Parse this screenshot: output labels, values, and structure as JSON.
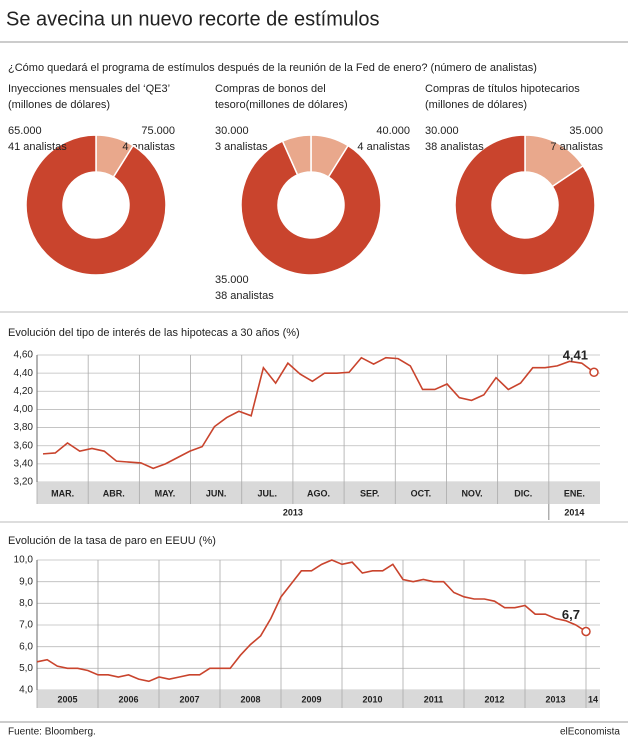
{
  "title": "Se avecina un nuevo recorte de estímulos",
  "subtitle": "¿Cómo quedará el programa de estímulos después de la reunión de la Fed de enero? (número de analistas)",
  "source": "Fuente: Bloomberg.",
  "brand": "elEconomista",
  "chart_data": [
    {
      "type": "pie",
      "title": [
        "Inyecciones mensuales del ‘QE3’",
        "(millones de dólares)"
      ],
      "categories": [
        "75.000",
        "65.000"
      ],
      "values": [
        4,
        41
      ],
      "value_labels": [
        "4 analistas",
        "41 analistas"
      ],
      "colors": [
        "#e9a88c",
        "#c9442d"
      ]
    },
    {
      "type": "pie",
      "title": [
        "Compras de bonos del",
        "tesoro(millones de dólares)"
      ],
      "categories": [
        "40.000",
        "35.000",
        "30.000"
      ],
      "values": [
        4,
        38,
        3
      ],
      "value_labels": [
        "4 analistas",
        "38 analistas",
        "3 analistas"
      ],
      "colors": [
        "#e9a88c",
        "#c9442d",
        "#e9a88c"
      ]
    },
    {
      "type": "pie",
      "title": [
        "Compras de títulos hipotecarios",
        "(millones de dólares)"
      ],
      "categories": [
        "35.000",
        "30.000"
      ],
      "values": [
        7,
        38
      ],
      "value_labels": [
        "7 analistas",
        "38 analistas"
      ],
      "colors": [
        "#e9a88c",
        "#c9442d"
      ]
    },
    {
      "type": "line",
      "title": "Evolución del tipo de interés de las hipotecas a 30 años (%)",
      "months": [
        "MAR.",
        "ABR.",
        "MAY.",
        "JUN.",
        "JUL.",
        "AGO.",
        "SEP.",
        "OCT.",
        "NOV.",
        "DIC.",
        "ENE."
      ],
      "years": [
        "2013",
        "2014"
      ],
      "year_spans": [
        10,
        1
      ],
      "color": "#c9442d",
      "annotation": "4,41",
      "values": [
        3.51,
        3.52,
        3.63,
        3.54,
        3.57,
        3.54,
        3.43,
        3.42,
        3.41,
        3.35,
        3.4,
        3.47,
        3.54,
        3.59,
        3.81,
        3.91,
        3.98,
        3.93,
        4.46,
        4.29,
        4.51,
        4.39,
        4.31,
        4.4,
        4.4,
        4.41,
        4.57,
        4.5,
        4.57,
        4.56,
        4.48,
        4.22,
        4.22,
        4.28,
        4.13,
        4.1,
        4.16,
        4.35,
        4.22,
        4.29,
        4.46,
        4.46,
        4.48,
        4.53,
        4.51,
        4.41
      ],
      "ylim": [
        3.2,
        4.6
      ],
      "yticks": [
        {
          "value": 3.2,
          "label": "3,20"
        },
        {
          "value": 3.4,
          "label": "3,40"
        },
        {
          "value": 3.6,
          "label": "3,60"
        },
        {
          "value": 3.8,
          "label": "3,80"
        },
        {
          "value": 4.0,
          "label": "4,00"
        },
        {
          "value": 4.2,
          "label": "4,20"
        },
        {
          "value": 4.4,
          "label": "4,40"
        },
        {
          "value": 4.6,
          "label": "4,60"
        }
      ],
      "grid": true
    },
    {
      "type": "line",
      "title": "Evolución de la tasa de paro en EEUU (%)",
      "years": [
        "2005",
        "2006",
        "2007",
        "2008",
        "2009",
        "2010",
        "2011",
        "2012",
        "2013",
        "14"
      ],
      "color": "#c9442d",
      "annotation": "6,7",
      "values": [
        5.3,
        5.4,
        5.1,
        5.0,
        5.0,
        4.9,
        4.7,
        4.7,
        4.6,
        4.7,
        4.5,
        4.4,
        4.6,
        4.5,
        4.6,
        4.7,
        4.7,
        5.0,
        5.0,
        5.0,
        5.6,
        6.1,
        6.5,
        7.3,
        8.3,
        8.9,
        9.5,
        9.5,
        9.8,
        10.0,
        9.8,
        9.9,
        9.4,
        9.5,
        9.5,
        9.8,
        9.1,
        9.0,
        9.1,
        9.0,
        9.0,
        8.5,
        8.3,
        8.2,
        8.2,
        8.1,
        7.8,
        7.8,
        7.9,
        7.5,
        7.5,
        7.3,
        7.2,
        7.0,
        6.7
      ],
      "ylim": [
        4.0,
        10.0
      ],
      "yticks": [
        {
          "value": 4,
          "label": "4,0"
        },
        {
          "value": 5,
          "label": "5,0"
        },
        {
          "value": 6,
          "label": "6,0"
        },
        {
          "value": 7,
          "label": "7,0"
        },
        {
          "value": 8,
          "label": "8,0"
        },
        {
          "value": 9,
          "label": "9,0"
        },
        {
          "value": 10,
          "label": "10,0"
        }
      ],
      "grid": true
    }
  ]
}
